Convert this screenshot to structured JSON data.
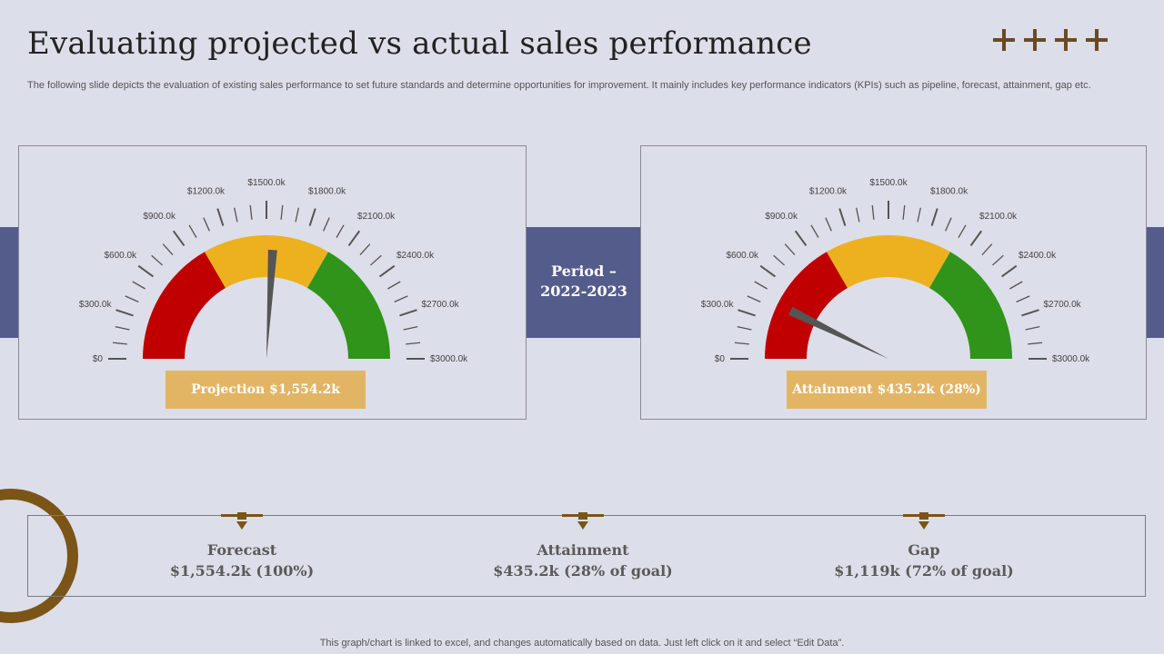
{
  "header": {
    "title": "Evaluating projected vs actual sales performance",
    "description": "The following slide depicts the evaluation of existing sales performance to set future standards and determine opportunities for improvement. It mainly includes key performance indicators (KPIs)  such as pipeline, forecast, attainment, gap etc.",
    "decoration_icon": "plus-cross-icon"
  },
  "period": {
    "line1": "Period –",
    "line2": "2022-2023"
  },
  "colors": {
    "red": "#c00000",
    "amber": "#edb120",
    "green": "#2f9419",
    "badge": "#e2b565",
    "band": "#545c8b",
    "accent_brown": "#7b5417",
    "needle": "#555555"
  },
  "chart_data": [
    {
      "type": "gauge",
      "min": 0,
      "max": 3000,
      "tick_labels": [
        "$0",
        "$300.0k",
        "$600.0k",
        "$900.0k",
        "$1200.0k",
        "$1500.0k",
        "$1800.0k",
        "$2100.0k",
        "$2400.0k",
        "$2700.0k",
        "$3000.0k"
      ],
      "bands": [
        {
          "from": 0,
          "to": 1000,
          "color": "#c00000"
        },
        {
          "from": 1000,
          "to": 2000,
          "color": "#edb120"
        },
        {
          "from": 2000,
          "to": 3000,
          "color": "#2f9419"
        }
      ],
      "value": 1554.2,
      "label": "Projection $1,554.2k"
    },
    {
      "type": "gauge",
      "min": 0,
      "max": 3000,
      "tick_labels": [
        "$0",
        "$300.0k",
        "$600.0k",
        "$900.0k",
        "$1200.0k",
        "$1500.0k",
        "$1800.0k",
        "$2100.0k",
        "$2400.0k",
        "$2700.0k",
        "$3000.0k"
      ],
      "bands": [
        {
          "from": 0,
          "to": 1000,
          "color": "#c00000"
        },
        {
          "from": 1000,
          "to": 2000,
          "color": "#edb120"
        },
        {
          "from": 2000,
          "to": 3000,
          "color": "#2f9419"
        }
      ],
      "value": 435.2,
      "label": "Attainment $435.2k (28%)"
    }
  ],
  "summary": [
    {
      "name": "Forecast",
      "value": "$1,554.2k (100%)"
    },
    {
      "name": "Attainment",
      "value": "$435.2k (28% of goal)"
    },
    {
      "name": "Gap",
      "value": "$1,119k (72% of goal)"
    }
  ],
  "footer": "This graph/chart is linked to excel,  and changes automatically based on data. Just left click on it and select “Edit Data”."
}
